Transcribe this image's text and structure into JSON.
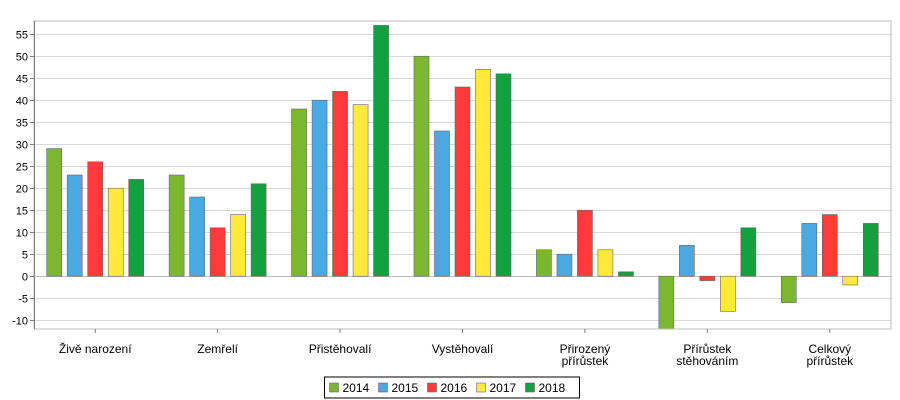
{
  "chart_data": {
    "type": "bar",
    "categories": [
      [
        "Živě narození"
      ],
      [
        "Zemřelí"
      ],
      [
        "Přistěhovalí"
      ],
      [
        "Vystěhovalí"
      ],
      [
        "Přirozený",
        "přírůstek"
      ],
      [
        "Přírůstek",
        "stěhováním"
      ],
      [
        "Celkový",
        "přírůstek"
      ]
    ],
    "series": [
      {
        "name": "2014",
        "color": "#7cb82f",
        "values": [
          29,
          23,
          38,
          50,
          6,
          -12,
          -6
        ]
      },
      {
        "name": "2015",
        "color": "#4aa8e2",
        "values": [
          23,
          18,
          40,
          33,
          5,
          7,
          12
        ]
      },
      {
        "name": "2016",
        "color": "#ff3a3a",
        "values": [
          26,
          11,
          42,
          43,
          15,
          -1,
          14
        ]
      },
      {
        "name": "2017",
        "color": "#ffe93a",
        "values": [
          20,
          14,
          39,
          47,
          6,
          -8,
          -2
        ]
      },
      {
        "name": "2018",
        "color": "#13a03f",
        "values": [
          22,
          21,
          57,
          46,
          1,
          11,
          12
        ]
      }
    ],
    "ylim": [
      -12,
      58
    ],
    "yticks": [
      -10,
      -5,
      0,
      5,
      10,
      15,
      20,
      25,
      30,
      35,
      40,
      45,
      50,
      55
    ],
    "grid": true,
    "legend_position": "bottom-center"
  }
}
